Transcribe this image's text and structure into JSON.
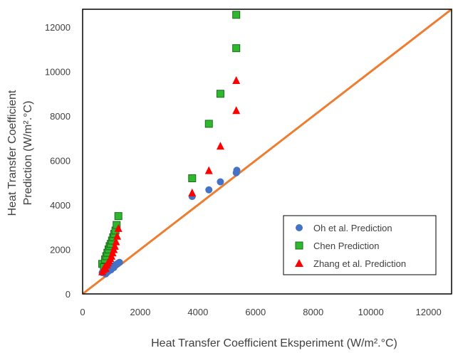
{
  "chart_data": {
    "type": "scatter",
    "title": "",
    "xlabel": "Heat Transfer Coefficient Eksperiment (W/m².°C)",
    "ylabel_lines": [
      "Heat Transfer Coefficient",
      "Prediction (W/m².°C)"
    ],
    "xlim": [
      0,
      12800
    ],
    "ylim": [
      0,
      12800
    ],
    "xticks": [
      0,
      2000,
      4000,
      6000,
      8000,
      10000,
      12000
    ],
    "yticks": [
      0,
      2000,
      4000,
      6000,
      8000,
      10000,
      12000
    ],
    "grid": false,
    "legend_position": "bottom-right",
    "reference_line": {
      "x": [
        0,
        12800
      ],
      "y": [
        0,
        12800
      ],
      "color": "#ED7D31"
    },
    "series": [
      {
        "name": "Oh et al. Prediction",
        "marker": "circle",
        "color": "#4472C4",
        "points": [
          [
            680,
            960
          ],
          [
            720,
            1000
          ],
          [
            760,
            1040
          ],
          [
            800,
            900
          ],
          [
            820,
            1090
          ],
          [
            860,
            1120
          ],
          [
            880,
            1000
          ],
          [
            900,
            1160
          ],
          [
            940,
            1200
          ],
          [
            980,
            1080
          ],
          [
            1000,
            1230
          ],
          [
            1040,
            1260
          ],
          [
            1080,
            1180
          ],
          [
            1120,
            1290
          ],
          [
            1160,
            1320
          ],
          [
            1200,
            1350
          ],
          [
            1240,
            1390
          ],
          [
            1280,
            1420
          ],
          [
            3800,
            4380
          ],
          [
            4380,
            4680
          ],
          [
            4780,
            5040
          ],
          [
            5330,
            5450
          ],
          [
            5350,
            5560
          ]
        ]
      },
      {
        "name": "Chen Prediction",
        "marker": "square",
        "color": "#2EB82E",
        "stroke": "#1E6B1E",
        "points": [
          [
            680,
            1350
          ],
          [
            740,
            1200
          ],
          [
            780,
            1550
          ],
          [
            820,
            1700
          ],
          [
            860,
            1850
          ],
          [
            900,
            2000
          ],
          [
            940,
            2150
          ],
          [
            980,
            2250
          ],
          [
            1020,
            2400
          ],
          [
            1060,
            2550
          ],
          [
            1100,
            2700
          ],
          [
            1140,
            2850
          ],
          [
            1180,
            3100
          ],
          [
            1240,
            3500
          ],
          [
            3800,
            5200
          ],
          [
            4380,
            7650
          ],
          [
            4780,
            9000
          ],
          [
            5330,
            11050
          ],
          [
            5330,
            12550
          ]
        ]
      },
      {
        "name": "Zhang et al. Prediction",
        "marker": "triangle",
        "color": "#FF0000",
        "points": [
          [
            680,
            1000
          ],
          [
            720,
            1100
          ],
          [
            760,
            1200
          ],
          [
            800,
            1150
          ],
          [
            840,
            1300
          ],
          [
            880,
            1400
          ],
          [
            920,
            1500
          ],
          [
            960,
            1600
          ],
          [
            1000,
            1700
          ],
          [
            1040,
            1850
          ],
          [
            1080,
            2000
          ],
          [
            1120,
            2150
          ],
          [
            1160,
            2350
          ],
          [
            1200,
            2600
          ],
          [
            1240,
            2950
          ],
          [
            3800,
            4550
          ],
          [
            4380,
            5550
          ],
          [
            4780,
            6650
          ],
          [
            5330,
            8250
          ],
          [
            5330,
            9600
          ]
        ]
      }
    ]
  }
}
